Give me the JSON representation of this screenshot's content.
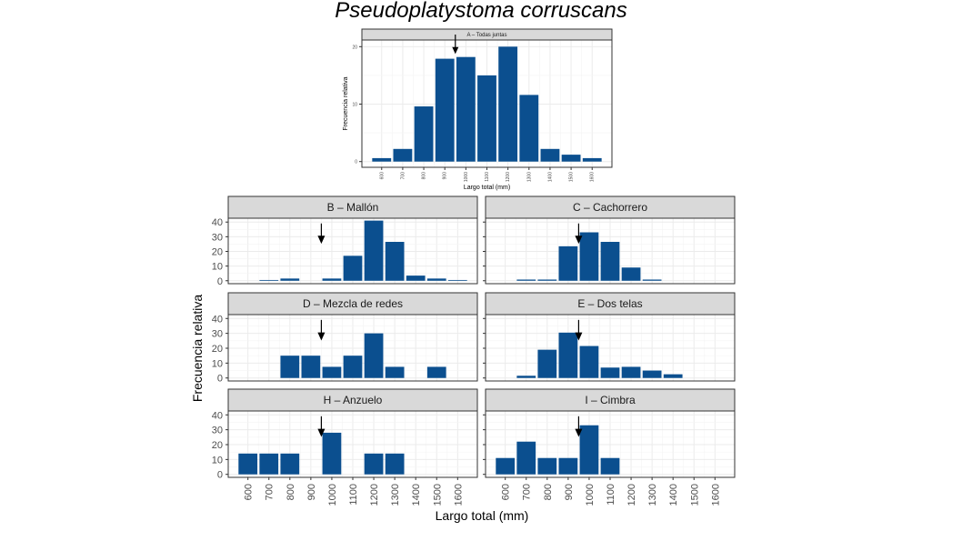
{
  "figure_title": "Pseudoplatystoma corruscans",
  "chart_data": {
    "type": "bar",
    "categories": [
      600,
      700,
      800,
      900,
      1000,
      1100,
      1200,
      1300,
      1400,
      1500,
      1600
    ],
    "category_labels": [
      "600",
      "700",
      "800",
      "900",
      "1000",
      "1100",
      "1200",
      "1300",
      "1400",
      "1500",
      "1600"
    ],
    "bar_color": "#0b4f8f",
    "arrow_marker_x": 950,
    "shared_xlabel": "Largo total (mm)",
    "shared_ylabel": "Frecuencia relativa",
    "panels": [
      {
        "id": "A",
        "title": "A – Todas juntas",
        "xlabel": "Largo total (mm)",
        "ylabel": "Frecuencia relativa",
        "yticks": [
          0,
          10,
          20
        ],
        "ylim": [
          0,
          20
        ],
        "values": [
          0.6,
          2.2,
          9.6,
          17.9,
          18.2,
          15.0,
          20.0,
          11.6,
          2.2,
          1.2,
          0.6
        ]
      },
      {
        "id": "B",
        "title": "B – Mallón",
        "yticks": [
          0,
          10,
          20,
          30,
          40
        ],
        "ylim": [
          0,
          40
        ],
        "values": [
          0,
          0.5,
          1.5,
          0,
          1.5,
          17,
          41,
          26.5,
          3.5,
          1.5,
          0.5
        ]
      },
      {
        "id": "C",
        "title": "C – Cachorrero",
        "yticks": [
          0,
          10,
          20,
          30,
          40
        ],
        "ylim": [
          0,
          40
        ],
        "values": [
          0,
          0.8,
          0.8,
          23.5,
          33,
          26.5,
          9,
          0.8,
          0,
          0,
          0
        ]
      },
      {
        "id": "D",
        "title": "D – Mezcla de redes",
        "yticks": [
          0,
          10,
          20,
          30,
          40
        ],
        "ylim": [
          0,
          40
        ],
        "values": [
          0,
          0,
          15,
          15,
          7.5,
          15,
          30,
          7.5,
          0,
          7.5,
          0
        ]
      },
      {
        "id": "E",
        "title": "E – Dos telas",
        "yticks": [
          0,
          10,
          20,
          30,
          40
        ],
        "ylim": [
          0,
          40
        ],
        "values": [
          0,
          1.5,
          19,
          30.5,
          21.5,
          7,
          7.5,
          5,
          2.5,
          0,
          0
        ]
      },
      {
        "id": "H",
        "title": "H – Anzuelo",
        "yticks": [
          0,
          10,
          20,
          30,
          40
        ],
        "ylim": [
          0,
          40
        ],
        "values": [
          14,
          14,
          14,
          0,
          28,
          0,
          14,
          14,
          0,
          0,
          0
        ]
      },
      {
        "id": "I",
        "title": "I – Cimbra",
        "yticks": [
          0,
          10,
          20,
          30,
          40
        ],
        "ylim": [
          0,
          40
        ],
        "values": [
          11,
          22,
          11,
          11,
          33,
          11,
          0,
          0,
          0,
          0,
          0
        ]
      }
    ]
  }
}
